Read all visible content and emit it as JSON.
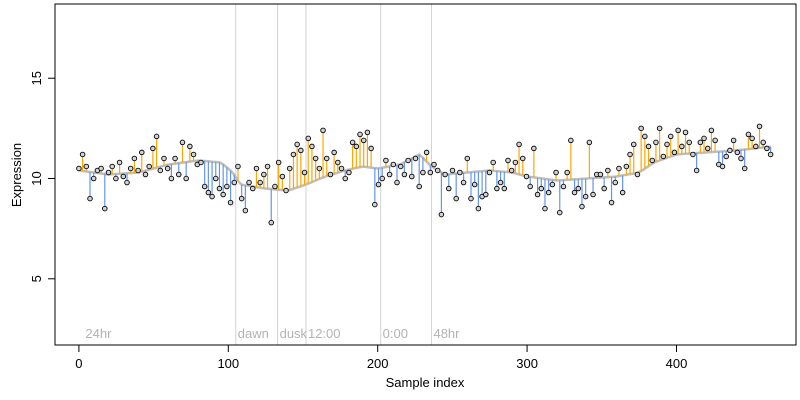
{
  "chart_data": {
    "type": "scatter",
    "xlabel": "Sample index",
    "ylabel": "Expression",
    "xlim": [
      -16,
      480
    ],
    "ylim": [
      1.7,
      18.7
    ],
    "x_ticks": [
      0,
      100,
      200,
      300,
      400
    ],
    "y_ticks": [
      5,
      10,
      15
    ],
    "phase_markers": [
      {
        "x": 3,
        "label": "24hr"
      },
      {
        "x": 105,
        "label": "dawn"
      },
      {
        "x": 133,
        "label": "dusk"
      },
      {
        "x": 152,
        "label": "12:00"
      },
      {
        "x": 202,
        "label": "0:00"
      },
      {
        "x": 236,
        "label": "48hr"
      }
    ],
    "colors": {
      "above": "#ffa500",
      "below": "#6495ed",
      "smooth": "#bebebe",
      "vline": "#d3d3d3",
      "point_fill": "#d3d3d3"
    },
    "smooth_knots": [
      [
        0,
        10.4
      ],
      [
        20,
        10.2
      ],
      [
        40,
        10.3
      ],
      [
        60,
        10.7
      ],
      [
        80,
        10.9
      ],
      [
        95,
        10.8
      ],
      [
        103,
        10.3
      ],
      [
        108,
        9.7
      ],
      [
        125,
        9.5
      ],
      [
        140,
        9.4
      ],
      [
        152,
        9.7
      ],
      [
        165,
        10.1
      ],
      [
        178,
        10.4
      ],
      [
        190,
        10.6
      ],
      [
        200,
        10.5
      ],
      [
        215,
        10.7
      ],
      [
        228,
        11.2
      ],
      [
        236,
        10.6
      ],
      [
        245,
        10.2
      ],
      [
        260,
        10.3
      ],
      [
        275,
        10.4
      ],
      [
        290,
        10.3
      ],
      [
        300,
        10.1
      ],
      [
        320,
        9.9
      ],
      [
        340,
        10.0
      ],
      [
        360,
        10.1
      ],
      [
        375,
        10.3
      ],
      [
        385,
        10.8
      ],
      [
        400,
        11.2
      ],
      [
        420,
        11.3
      ],
      [
        440,
        11.4
      ],
      [
        465,
        11.6
      ]
    ],
    "series": [
      {
        "values": [
          10.5,
          11.2,
          10.6,
          9.0,
          10.0,
          10.4,
          10.5,
          8.5,
          10.3,
          10.6,
          10.0,
          10.8,
          10.1,
          9.8,
          10.5,
          11.0,
          10.4,
          11.3,
          10.2,
          10.6,
          11.5,
          12.1,
          10.4,
          11.0,
          10.5,
          10.0,
          11.0,
          10.2,
          11.8,
          10.0,
          11.6,
          11.2,
          10.7,
          10.8,
          9.6,
          9.3,
          9.1,
          10.0,
          9.5,
          9.2,
          9.6,
          8.8,
          9.8,
          10.6,
          9.0,
          8.4,
          9.8,
          9.5,
          10.5,
          9.8,
          10.2,
          10.6,
          7.8,
          9.6,
          10.8,
          10.1,
          9.4,
          10.5,
          11.2,
          11.7,
          11.4,
          10.3,
          12.0,
          11.6,
          11.0,
          10.5,
          12.4,
          11.0,
          10.2,
          11.3,
          10.8,
          10.5,
          10.0,
          10.3,
          11.8,
          11.6,
          12.2,
          11.9,
          12.3,
          11.5,
          8.7,
          9.7,
          10.0,
          10.9,
          10.2,
          10.7,
          9.8,
          10.6,
          10.2,
          10.9,
          10.1,
          11.0,
          9.6,
          10.3,
          11.3,
          10.3,
          10.7,
          10.4,
          8.2,
          10.2,
          9.5,
          10.4,
          9.0,
          10.3,
          9.8,
          11.0,
          9.0,
          9.7,
          8.5,
          9.1,
          9.2,
          10.3,
          10.8,
          9.5,
          9.8,
          9.5,
          10.9,
          10.4,
          10.8,
          11.7,
          11.0,
          10.1,
          9.6,
          11.5,
          9.2,
          9.5,
          8.5,
          9.3,
          9.7,
          10.3,
          8.3,
          9.6,
          10.3,
          11.9,
          9.3,
          9.5,
          8.6,
          9.1,
          11.8,
          9.2,
          10.2,
          10.2,
          9.5,
          10.4,
          8.8,
          9.8,
          10.5,
          9.3,
          10.6,
          11.2,
          11.7,
          10.2,
          12.5,
          12.1,
          11.6,
          10.9,
          11.8,
          12.5,
          11.1,
          11.7,
          12.1,
          11.3,
          12.4,
          11.6,
          12.3,
          11.8,
          11.2,
          10.4,
          11.8,
          12.0,
          11.5,
          12.4,
          11.9,
          10.7,
          10.6,
          11.1,
          11.4,
          11.9,
          11.3,
          11.0,
          10.5,
          12.2,
          12.0,
          11.6,
          12.6,
          11.8,
          11.5,
          11.2
        ]
      }
    ]
  }
}
